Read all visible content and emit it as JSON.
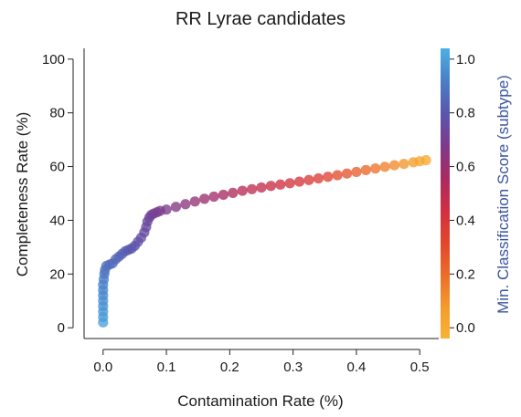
{
  "chart_data": {
    "type": "scatter",
    "title": "RR Lyrae candidates",
    "xlabel": "Contamination Rate (%)",
    "ylabel": "Completeness Rate (%)",
    "colorbar_label": "Min. Classification Score (subtype)",
    "xlim": [
      -0.03,
      0.53
    ],
    "ylim": [
      -4,
      104
    ],
    "clim": [
      -0.04,
      1.04
    ],
    "x_ticks": [
      0.0,
      0.1,
      0.2,
      0.3,
      0.4,
      0.5
    ],
    "x_tick_labels": [
      "0.0",
      "0.1",
      "0.2",
      "0.3",
      "0.4",
      "0.5"
    ],
    "y_ticks": [
      0,
      20,
      40,
      60,
      80,
      100
    ],
    "y_tick_labels": [
      "0",
      "20",
      "40",
      "60",
      "80",
      "100"
    ],
    "colorbar_ticks": [
      0.0,
      0.2,
      0.4,
      0.6,
      0.8,
      1.0
    ],
    "colorbar_tick_labels": [
      "0.0",
      "0.2",
      "0.4",
      "0.6",
      "0.8",
      "1.0"
    ],
    "colormap": [
      "#f9b233",
      "#f39a2c",
      "#eb6b2a",
      "#e2452d",
      "#cf2f42",
      "#a92a63",
      "#7d3a8c",
      "#5a56ae",
      "#4a7fc8",
      "#4bb0e4"
    ],
    "colorbar_label_color": "#3a55a0",
    "grid": false,
    "legend": "none",
    "points": [
      [
        0.0,
        2.0,
        1.0
      ],
      [
        0.0,
        4.0,
        0.99
      ],
      [
        0.0,
        6.0,
        0.98
      ],
      [
        0.0,
        8.0,
        0.97
      ],
      [
        0.0,
        10.0,
        0.96
      ],
      [
        0.0,
        12.0,
        0.95
      ],
      [
        0.0,
        14.0,
        0.94
      ],
      [
        0.0,
        16.0,
        0.93
      ],
      [
        0.001,
        18.0,
        0.92
      ],
      [
        0.002,
        20.0,
        0.9
      ],
      [
        0.003,
        21.5,
        0.89
      ],
      [
        0.005,
        23.0,
        0.88
      ],
      [
        0.01,
        23.5,
        0.87
      ],
      [
        0.015,
        24.0,
        0.86
      ],
      [
        0.02,
        25.5,
        0.85
      ],
      [
        0.025,
        26.5,
        0.84
      ],
      [
        0.03,
        27.5,
        0.83
      ],
      [
        0.035,
        28.5,
        0.82
      ],
      [
        0.04,
        29.0,
        0.81
      ],
      [
        0.045,
        29.5,
        0.8
      ],
      [
        0.05,
        30.5,
        0.79
      ],
      [
        0.055,
        32.0,
        0.78
      ],
      [
        0.06,
        33.5,
        0.77
      ],
      [
        0.065,
        35.5,
        0.76
      ],
      [
        0.068,
        37.5,
        0.75
      ],
      [
        0.07,
        39.5,
        0.74
      ],
      [
        0.073,
        41.0,
        0.73
      ],
      [
        0.076,
        42.0,
        0.72
      ],
      [
        0.08,
        42.5,
        0.71
      ],
      [
        0.085,
        43.0,
        0.7
      ],
      [
        0.09,
        43.5,
        0.69
      ],
      [
        0.1,
        44.0,
        0.68
      ],
      [
        0.115,
        45.0,
        0.66
      ],
      [
        0.13,
        46.0,
        0.64
      ],
      [
        0.145,
        47.0,
        0.62
      ],
      [
        0.16,
        48.0,
        0.6
      ],
      [
        0.175,
        48.8,
        0.58
      ],
      [
        0.19,
        49.5,
        0.56
      ],
      [
        0.205,
        50.2,
        0.54
      ],
      [
        0.22,
        51.0,
        0.52
      ],
      [
        0.235,
        51.6,
        0.5
      ],
      [
        0.25,
        52.2,
        0.48
      ],
      [
        0.265,
        52.8,
        0.46
      ],
      [
        0.28,
        53.3,
        0.44
      ],
      [
        0.295,
        53.8,
        0.42
      ],
      [
        0.31,
        54.4,
        0.4
      ],
      [
        0.325,
        55.0,
        0.38
      ],
      [
        0.34,
        55.6,
        0.36
      ],
      [
        0.355,
        56.2,
        0.33
      ],
      [
        0.37,
        56.8,
        0.3
      ],
      [
        0.385,
        57.4,
        0.27
      ],
      [
        0.4,
        58.0,
        0.24
      ],
      [
        0.415,
        58.7,
        0.21
      ],
      [
        0.43,
        59.3,
        0.18
      ],
      [
        0.445,
        59.9,
        0.15
      ],
      [
        0.46,
        60.5,
        0.12
      ],
      [
        0.475,
        61.0,
        0.09
      ],
      [
        0.49,
        61.6,
        0.06
      ],
      [
        0.5,
        62.0,
        0.03
      ],
      [
        0.51,
        62.4,
        0.01
      ]
    ]
  }
}
